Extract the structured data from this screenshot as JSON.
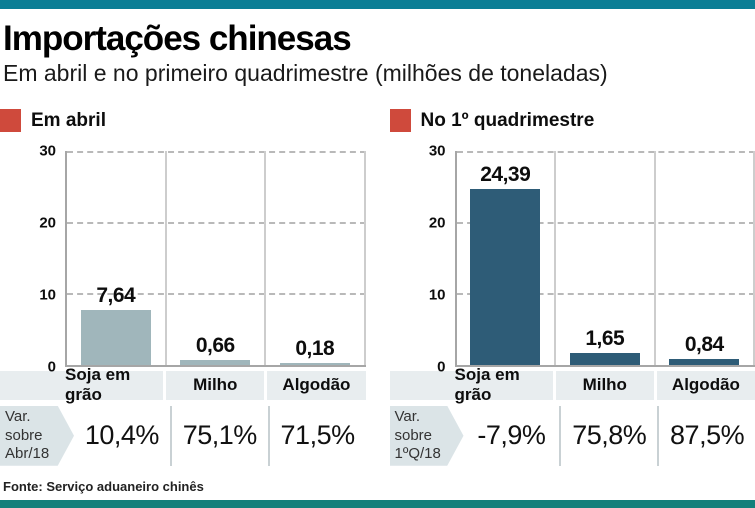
{
  "page": {
    "title": "Importações chinesas",
    "subtitle": "Em abril e no primeiro quadrimestre (milhões de toneladas)",
    "source": "Fonte: Serviço aduaneiro chinês"
  },
  "colors": {
    "top_bar": "#0b7e95",
    "bottom_bar": "#13807b",
    "legend_marker": "#cf4a3c",
    "april_bar": "#a0b6bb",
    "quarter_bar": "#2e5c77"
  },
  "chart_data": [
    {
      "type": "bar",
      "title": "Em abril",
      "categories": [
        "Soja em grão",
        "Milho",
        "Algodão"
      ],
      "values": [
        7.64,
        0.66,
        0.18
      ],
      "value_labels": [
        "7,64",
        "0,66",
        "0,18"
      ],
      "ylim": [
        0,
        30
      ],
      "yticks": [
        "30",
        "20",
        "10",
        "0"
      ],
      "grid": "horizontal dashed at 10, 20, 30",
      "legend_position": "top-left",
      "bar_color": "#a0b6bb",
      "var_label_lines": [
        "Var.",
        "sobre",
        "Abr/18"
      ],
      "variations": [
        "10,4%",
        "75,1%",
        "71,5%"
      ]
    },
    {
      "type": "bar",
      "title": "No 1º quadrimestre",
      "categories": [
        "Soja em grão",
        "Milho",
        "Algodão"
      ],
      "values": [
        24.39,
        1.65,
        0.84
      ],
      "value_labels": [
        "24,39",
        "1,65",
        "0,84"
      ],
      "ylim": [
        0,
        30
      ],
      "yticks": [
        "30",
        "20",
        "10",
        "0"
      ],
      "grid": "horizontal dashed at 10, 20, 30",
      "legend_position": "top-left",
      "bar_color": "#2e5c77",
      "var_label_lines": [
        "Var.",
        "sobre",
        "1ºQ/18"
      ],
      "variations": [
        "-7,9%",
        "75,8%",
        "87,5%"
      ]
    }
  ]
}
